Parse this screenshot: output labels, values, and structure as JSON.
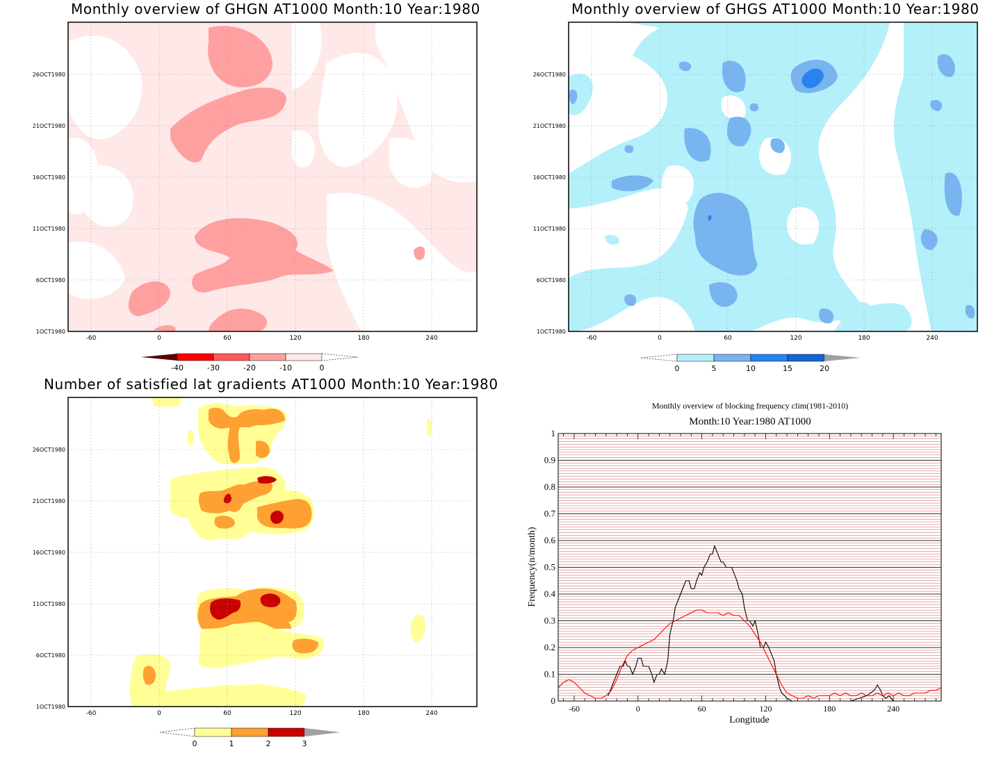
{
  "panels": {
    "ghgn": {
      "title": "Monthly overview of GHGN AT1000 Month:10 Year:1980",
      "colorbar_labels": [
        "-40",
        "-30",
        "-20",
        "-10",
        "0"
      ],
      "colorbar_colors": [
        "#5a0000",
        "#ff0000",
        "#ff5a5a",
        "#ffa0a0",
        "#ffe8e8"
      ]
    },
    "ghgs": {
      "title": "Monthly overview of GHGS AT1000 Month:10 Year:1980",
      "colorbar_labels": [
        "0",
        "5",
        "10",
        "15",
        "20"
      ],
      "colorbar_colors": [
        "#b4f0fa",
        "#78b4f0",
        "#2882f0",
        "#1464d2",
        "#a0a0a0"
      ]
    },
    "lat": {
      "title": "Number of satisfied lat gradients AT1000 Month:10 Year:1980",
      "colorbar_labels": [
        "0",
        "1",
        "2",
        "3"
      ],
      "colorbar_colors": [
        "#ffff96",
        "#ffa032",
        "#c80000",
        "#a0a0a0"
      ]
    },
    "freq": {
      "title": "Monthly overview of blocking frequency clim(1981-2010)",
      "subtitle": "Month:10 Year:1980  AT1000"
    }
  },
  "contour_axes": {
    "x_ticks": [
      "-60",
      "0",
      "60",
      "120",
      "180",
      "240"
    ],
    "y_ticks": [
      "1OCT1980",
      "6OCT1980",
      "11OCT1980",
      "16OCT1980",
      "21OCT1980",
      "26OCT1980"
    ]
  },
  "chart_data": [
    {
      "type": "heatmap",
      "title": "Monthly overview of GHGN AT1000 Month:10 Year:1980",
      "xlim": [
        -75,
        285
      ],
      "x_ticks": [
        -60,
        0,
        60,
        120,
        180,
        240
      ],
      "y_ticks": [
        "1OCT1980",
        "6OCT1980",
        "11OCT1980",
        "16OCT1980",
        "21OCT1980",
        "26OCT1980"
      ],
      "levels": [
        -40,
        -30,
        -20,
        -10,
        0
      ],
      "colors": [
        "#5a0000",
        "#ff0000",
        "#ff5a5a",
        "#ffa0a0",
        "#ffe8e8"
      ]
    },
    {
      "type": "heatmap",
      "title": "Monthly overview of GHGS AT1000 Month:10 Year:1980",
      "xlim": [
        -75,
        285
      ],
      "x_ticks": [
        -60,
        0,
        60,
        120,
        180,
        240
      ],
      "y_ticks": [
        "1OCT1980",
        "6OCT1980",
        "11OCT1980",
        "16OCT1980",
        "21OCT1980",
        "26OCT1980"
      ],
      "levels": [
        0,
        5,
        10,
        15,
        20
      ],
      "colors": [
        "#b4f0fa",
        "#78b4f0",
        "#2882f0",
        "#1464d2",
        "#a0a0a0"
      ]
    },
    {
      "type": "heatmap",
      "title": "Number of satisfied lat gradients AT1000 Month:10 Year:1980",
      "xlim": [
        -75,
        285
      ],
      "x_ticks": [
        -60,
        0,
        60,
        120,
        180,
        240
      ],
      "y_ticks": [
        "1OCT1980",
        "6OCT1980",
        "11OCT1980",
        "16OCT1980",
        "21OCT1980",
        "26OCT1980"
      ],
      "levels": [
        0,
        1,
        2,
        3
      ],
      "colors": [
        "#ffff96",
        "#ffa032",
        "#c80000",
        "#a0a0a0"
      ]
    },
    {
      "type": "line",
      "title": "Monthly overview of blocking frequency clim(1981-2010)",
      "subtitle": "Month:10 Year:1980  AT1000",
      "xlabel": "Longitude",
      "ylabel": "Frequency(n/month)",
      "xlim": [
        -75,
        285
      ],
      "ylim": [
        0,
        1
      ],
      "x_ticks": [
        -60,
        0,
        60,
        120,
        180,
        240
      ],
      "y_ticks": [
        0,
        0.1,
        0.2,
        0.3,
        0.4,
        0.5,
        0.6,
        0.7,
        0.8,
        0.9,
        1
      ],
      "series": [
        {
          "color": "#000000",
          "x": [
            -28,
            -25,
            -22,
            -20,
            -17,
            -14,
            -12,
            -10,
            -8,
            -5,
            -2,
            0,
            3,
            5,
            8,
            10,
            13,
            15,
            18,
            20,
            22,
            25,
            28,
            30,
            33,
            35,
            40,
            45,
            48,
            50,
            53,
            55,
            58,
            60,
            62,
            65,
            68,
            70,
            72,
            75,
            78,
            80,
            83,
            85,
            88,
            90,
            93,
            95,
            98,
            100,
            103,
            105,
            108,
            110,
            113,
            115,
            118,
            120,
            123,
            125,
            128,
            130,
            133,
            135,
            138,
            140,
            145,
            150,
            160,
            200,
            215,
            222,
            225,
            228,
            230,
            233,
            236,
            240
          ],
          "y": [
            0.02,
            0.05,
            0.08,
            0.1,
            0.13,
            0.13,
            0.15,
            0.13,
            0.13,
            0.1,
            0.13,
            0.16,
            0.16,
            0.13,
            0.13,
            0.13,
            0.1,
            0.07,
            0.1,
            0.1,
            0.12,
            0.1,
            0.15,
            0.25,
            0.3,
            0.35,
            0.4,
            0.45,
            0.45,
            0.42,
            0.42,
            0.45,
            0.48,
            0.47,
            0.5,
            0.52,
            0.55,
            0.55,
            0.58,
            0.55,
            0.52,
            0.52,
            0.5,
            0.5,
            0.5,
            0.48,
            0.45,
            0.42,
            0.4,
            0.35,
            0.3,
            0.3,
            0.28,
            0.3,
            0.25,
            0.2,
            0.2,
            0.22,
            0.2,
            0.18,
            0.15,
            0.1,
            0.05,
            0.03,
            0.02,
            0.01,
            0.0,
            0.0,
            0.0,
            0.0,
            0.02,
            0.04,
            0.06,
            0.04,
            0.02,
            0.01,
            0.02,
            0.0
          ]
        },
        {
          "color": "#ff0000",
          "x": [
            -75,
            -70,
            -65,
            -60,
            -55,
            -50,
            -45,
            -40,
            -35,
            -30,
            -25,
            -20,
            -15,
            -10,
            -5,
            0,
            5,
            10,
            15,
            20,
            25,
            30,
            35,
            40,
            45,
            50,
            55,
            60,
            65,
            70,
            75,
            80,
            85,
            90,
            95,
            100,
            105,
            110,
            115,
            120,
            125,
            130,
            135,
            140,
            145,
            150,
            155,
            160,
            165,
            170,
            175,
            180,
            185,
            190,
            195,
            200,
            205,
            210,
            215,
            220,
            225,
            230,
            235,
            240,
            245,
            250,
            255,
            260,
            265,
            270,
            275,
            280,
            285
          ],
          "y": [
            0.05,
            0.07,
            0.08,
            0.07,
            0.05,
            0.03,
            0.02,
            0.01,
            0.01,
            0.02,
            0.04,
            0.08,
            0.13,
            0.17,
            0.19,
            0.2,
            0.21,
            0.22,
            0.23,
            0.25,
            0.27,
            0.29,
            0.3,
            0.31,
            0.32,
            0.33,
            0.34,
            0.34,
            0.33,
            0.33,
            0.33,
            0.32,
            0.33,
            0.32,
            0.32,
            0.3,
            0.28,
            0.25,
            0.22,
            0.18,
            0.14,
            0.1,
            0.06,
            0.03,
            0.02,
            0.01,
            0.01,
            0.02,
            0.01,
            0.02,
            0.02,
            0.02,
            0.03,
            0.02,
            0.03,
            0.02,
            0.02,
            0.03,
            0.02,
            0.02,
            0.03,
            0.02,
            0.03,
            0.02,
            0.03,
            0.02,
            0.02,
            0.03,
            0.03,
            0.03,
            0.04,
            0.04,
            0.05
          ]
        }
      ]
    }
  ]
}
